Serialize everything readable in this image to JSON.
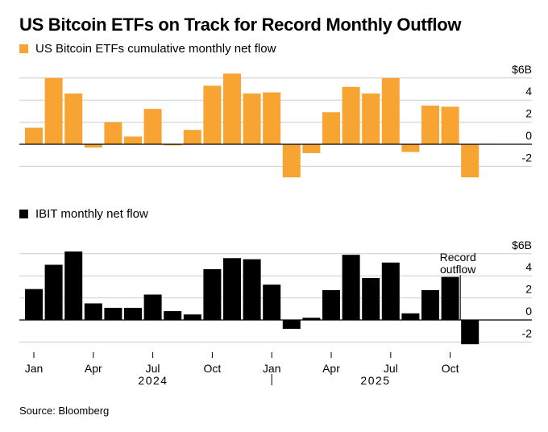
{
  "title": "US Bitcoin ETFs on Track for Record Monthly Outflow",
  "source": "Source: Bloomberg",
  "colors": {
    "orange": "#F7A433",
    "black": "#000000",
    "grid": "#cccccc",
    "axis": "#555555"
  },
  "chart_data": [
    {
      "type": "bar",
      "legend": "US Bitcoin ETFs cumulative monthly net flow",
      "color": "#F7A433",
      "categories": [
        "2024-01",
        "2024-02",
        "2024-03",
        "2024-04",
        "2024-05",
        "2024-06",
        "2024-07",
        "2024-08",
        "2024-09",
        "2024-10",
        "2024-11",
        "2024-12",
        "2025-01",
        "2025-02",
        "2025-03",
        "2025-04",
        "2025-05",
        "2025-06",
        "2025-07",
        "2025-08",
        "2025-09",
        "2025-10",
        "2025-11"
      ],
      "values": [
        1.5,
        6.0,
        4.6,
        -0.3,
        2.0,
        0.7,
        3.2,
        -0.1,
        1.3,
        5.3,
        6.4,
        4.6,
        4.7,
        -3.0,
        -0.8,
        2.9,
        5.2,
        4.6,
        6.0,
        -0.7,
        3.5,
        3.4,
        -3.0
      ],
      "yticks": [
        "$6B",
        "4",
        "2",
        "0",
        "-2"
      ],
      "ylim": [
        -3,
        6.5
      ]
    },
    {
      "type": "bar",
      "legend": "IBIT monthly net flow",
      "color": "#000000",
      "categories": [
        "2024-01",
        "2024-02",
        "2024-03",
        "2024-04",
        "2024-05",
        "2024-06",
        "2024-07",
        "2024-08",
        "2024-09",
        "2024-10",
        "2024-11",
        "2024-12",
        "2025-01",
        "2025-02",
        "2025-03",
        "2025-04",
        "2025-05",
        "2025-06",
        "2025-07",
        "2025-08",
        "2025-09",
        "2025-10",
        "2025-11"
      ],
      "values": [
        2.8,
        5.0,
        6.2,
        1.5,
        1.1,
        1.1,
        2.3,
        0.8,
        0.5,
        4.6,
        5.6,
        5.5,
        3.2,
        -0.8,
        0.2,
        2.7,
        5.9,
        3.8,
        5.2,
        0.6,
        2.7,
        3.9,
        -2.2
      ],
      "yticks": [
        "$6B",
        "4",
        "2",
        "0",
        "-2"
      ],
      "ylim": [
        -3,
        6.5
      ],
      "annotation": {
        "line1": "Record",
        "line2": "outflow"
      }
    }
  ],
  "x_axis": {
    "tick_labels": [
      "Jan",
      "Apr",
      "Jul",
      "Oct",
      "Jan",
      "Apr",
      "Jul",
      "Oct"
    ],
    "year_labels": [
      "2024",
      "2025"
    ]
  }
}
